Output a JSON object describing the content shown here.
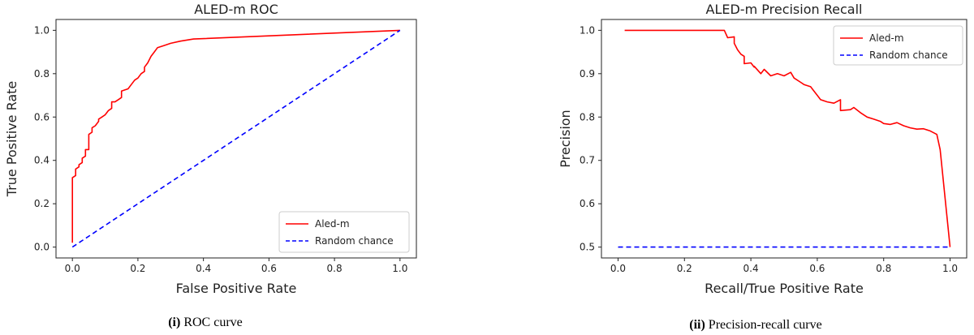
{
  "chart_data": [
    {
      "type": "line",
      "title": "ALED-m ROC",
      "xlabel": "False Positive Rate",
      "ylabel": "True Positive Rate",
      "xlim": [
        -0.05,
        1.05
      ],
      "ylim": [
        -0.05,
        1.05
      ],
      "xticks": [
        "0.0",
        "0.2",
        "0.4",
        "0.6",
        "0.8",
        "1.0"
      ],
      "yticks": [
        "0.0",
        "0.2",
        "0.4",
        "0.6",
        "0.8",
        "1.0"
      ],
      "legend_position": "lower-right",
      "series": [
        {
          "name": "Aled-m",
          "color": "#ff0000",
          "style": "solid",
          "x": [
            0.0,
            0.0,
            0.0,
            0.01,
            0.01,
            0.02,
            0.02,
            0.03,
            0.03,
            0.04,
            0.04,
            0.05,
            0.05,
            0.06,
            0.06,
            0.07,
            0.08,
            0.08,
            0.09,
            0.1,
            0.11,
            0.12,
            0.12,
            0.13,
            0.14,
            0.15,
            0.15,
            0.17,
            0.18,
            0.19,
            0.2,
            0.21,
            0.22,
            0.22,
            0.23,
            0.24,
            0.25,
            0.26,
            0.28,
            0.3,
            0.33,
            0.37,
            1.0
          ],
          "y": [
            0.02,
            0.25,
            0.32,
            0.33,
            0.36,
            0.37,
            0.38,
            0.39,
            0.41,
            0.42,
            0.45,
            0.45,
            0.52,
            0.53,
            0.55,
            0.56,
            0.58,
            0.59,
            0.6,
            0.61,
            0.63,
            0.64,
            0.67,
            0.67,
            0.68,
            0.69,
            0.72,
            0.73,
            0.75,
            0.77,
            0.78,
            0.8,
            0.81,
            0.83,
            0.85,
            0.88,
            0.9,
            0.92,
            0.93,
            0.94,
            0.95,
            0.96,
            1.0
          ]
        },
        {
          "name": "Random chance",
          "color": "#0000ff",
          "style": "dashed",
          "x": [
            0.0,
            1.0
          ],
          "y": [
            0.0,
            1.0
          ]
        }
      ],
      "caption_label": "(i)",
      "caption_text": " ROC curve"
    },
    {
      "type": "line",
      "title": "ALED-m Precision Recall",
      "xlabel": "Recall/True Positive Rate",
      "ylabel": "Precision",
      "xlim": [
        -0.05,
        1.05
      ],
      "ylim": [
        0.475,
        1.025
      ],
      "xticks": [
        "0.0",
        "0.2",
        "0.4",
        "0.6",
        "0.8",
        "1.0"
      ],
      "yticks": [
        "0.5",
        "0.6",
        "0.7",
        "0.8",
        "0.9",
        "1.0"
      ],
      "legend_position": "top-right",
      "series": [
        {
          "name": "Aled-m",
          "color": "#ff0000",
          "style": "solid",
          "x": [
            0.02,
            0.32,
            0.33,
            0.35,
            0.35,
            0.36,
            0.37,
            0.38,
            0.38,
            0.4,
            0.41,
            0.41,
            0.43,
            0.44,
            0.46,
            0.48,
            0.5,
            0.52,
            0.53,
            0.55,
            0.56,
            0.58,
            0.59,
            0.6,
            0.61,
            0.63,
            0.65,
            0.67,
            0.67,
            0.7,
            0.71,
            0.73,
            0.75,
            0.77,
            0.79,
            0.8,
            0.82,
            0.84,
            0.86,
            0.88,
            0.9,
            0.92,
            0.94,
            0.96,
            0.97,
            1.0
          ],
          "y": [
            1.0,
            1.0,
            0.983,
            0.985,
            0.97,
            0.955,
            0.945,
            0.94,
            0.923,
            0.925,
            0.915,
            0.917,
            0.9,
            0.91,
            0.895,
            0.9,
            0.895,
            0.903,
            0.89,
            0.88,
            0.875,
            0.87,
            0.86,
            0.85,
            0.84,
            0.835,
            0.832,
            0.84,
            0.815,
            0.817,
            0.822,
            0.81,
            0.8,
            0.795,
            0.79,
            0.785,
            0.783,
            0.787,
            0.78,
            0.775,
            0.772,
            0.773,
            0.768,
            0.76,
            0.725,
            0.5
          ]
        },
        {
          "name": "Random chance",
          "color": "#0000ff",
          "style": "dashed",
          "x": [
            0.0,
            1.0
          ],
          "y": [
            0.5,
            0.5
          ]
        }
      ],
      "caption_label": "(ii)",
      "caption_text": " Precision-recall curve"
    }
  ]
}
